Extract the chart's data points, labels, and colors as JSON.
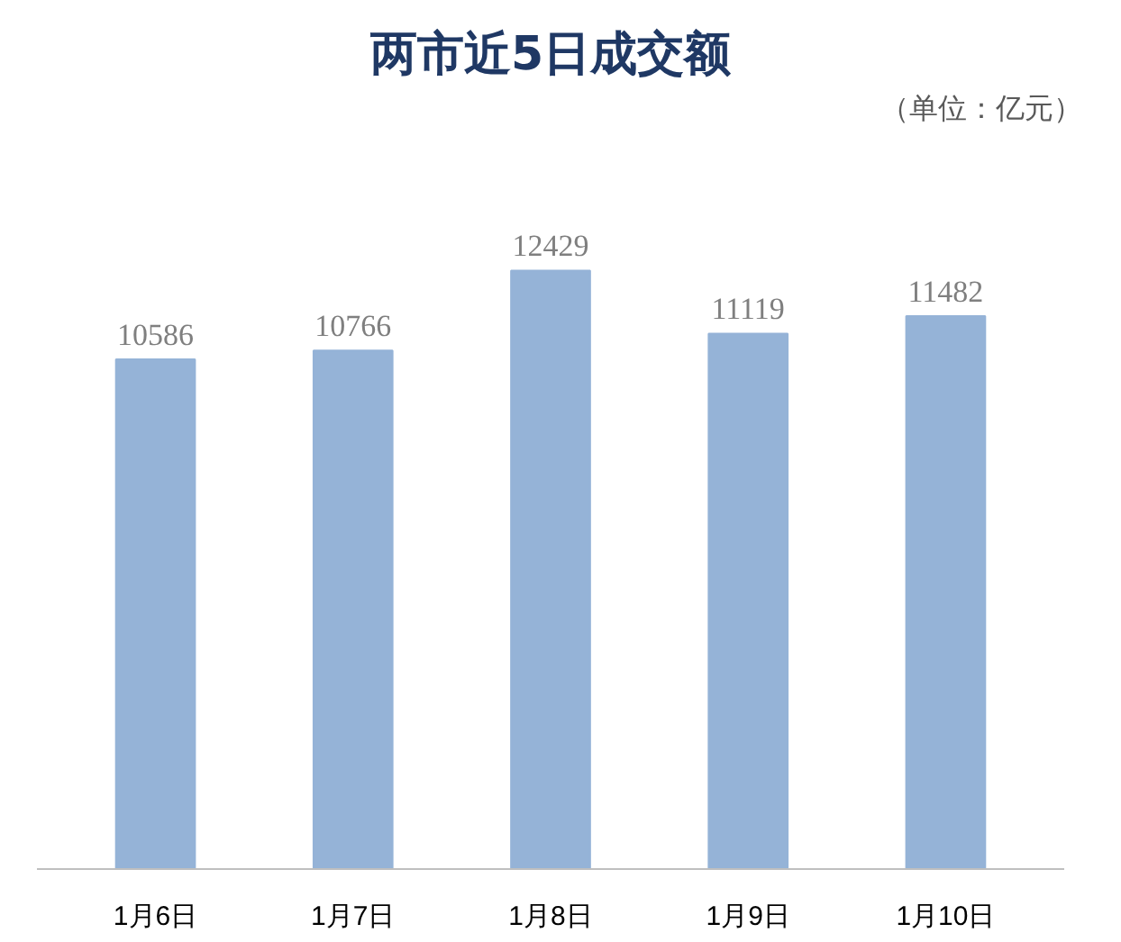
{
  "chart_data": {
    "type": "bar",
    "title": "两市近5日成交额",
    "subtitle": "（单位：亿元）",
    "categories": [
      "1月6日",
      "1月7日",
      "1月8日",
      "1月9日",
      "1月10日"
    ],
    "values": [
      10586,
      10766,
      12429,
      11119,
      11482
    ],
    "color": "#95b3d7",
    "data_labels": true
  }
}
